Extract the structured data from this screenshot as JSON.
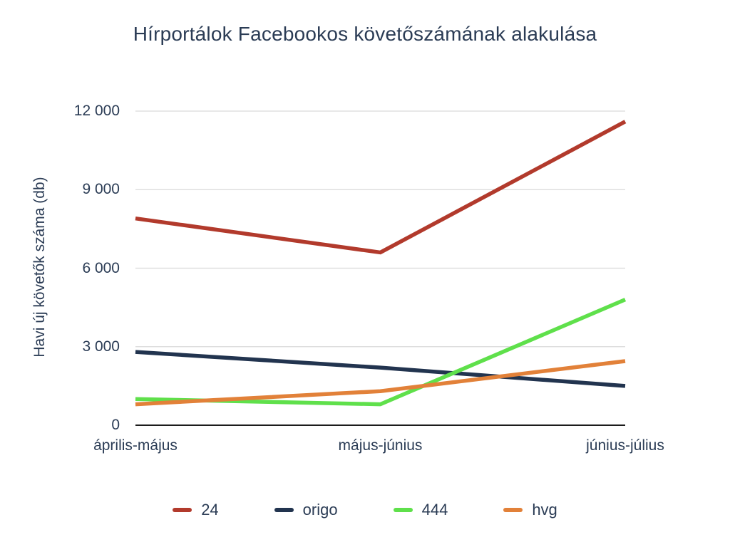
{
  "title": "Hírportálok Facebookos követőszámának alakulása",
  "chart_data": {
    "type": "line",
    "categories": [
      "április-május",
      "május-június",
      "június-július"
    ],
    "series": [
      {
        "name": "24",
        "color": "#b23a2c",
        "values": [
          7900,
          6600,
          11600
        ]
      },
      {
        "name": "origo",
        "color": "#22344f",
        "values": [
          2800,
          2200,
          1500
        ]
      },
      {
        "name": "444",
        "color": "#5fe04b",
        "values": [
          1000,
          800,
          4800
        ]
      },
      {
        "name": "hvg",
        "color": "#e28139",
        "values": [
          800,
          1300,
          2450
        ]
      }
    ],
    "xlabel": "",
    "ylabel": "Havi új követők száma (db)",
    "ylim": [
      0,
      12000
    ],
    "yticks": [
      {
        "value": 0,
        "label": "0"
      },
      {
        "value": 3000,
        "label": "3 000"
      },
      {
        "value": 6000,
        "label": "6 000"
      },
      {
        "value": 9000,
        "label": "9 000"
      },
      {
        "value": 12000,
        "label": "12 000"
      }
    ],
    "grid": true,
    "legend_position": "bottom"
  },
  "colors": {
    "text": "#2b3c55",
    "gridline": "#d9d9d9",
    "axis": "#1c1c1c",
    "background": "#ffffff"
  }
}
